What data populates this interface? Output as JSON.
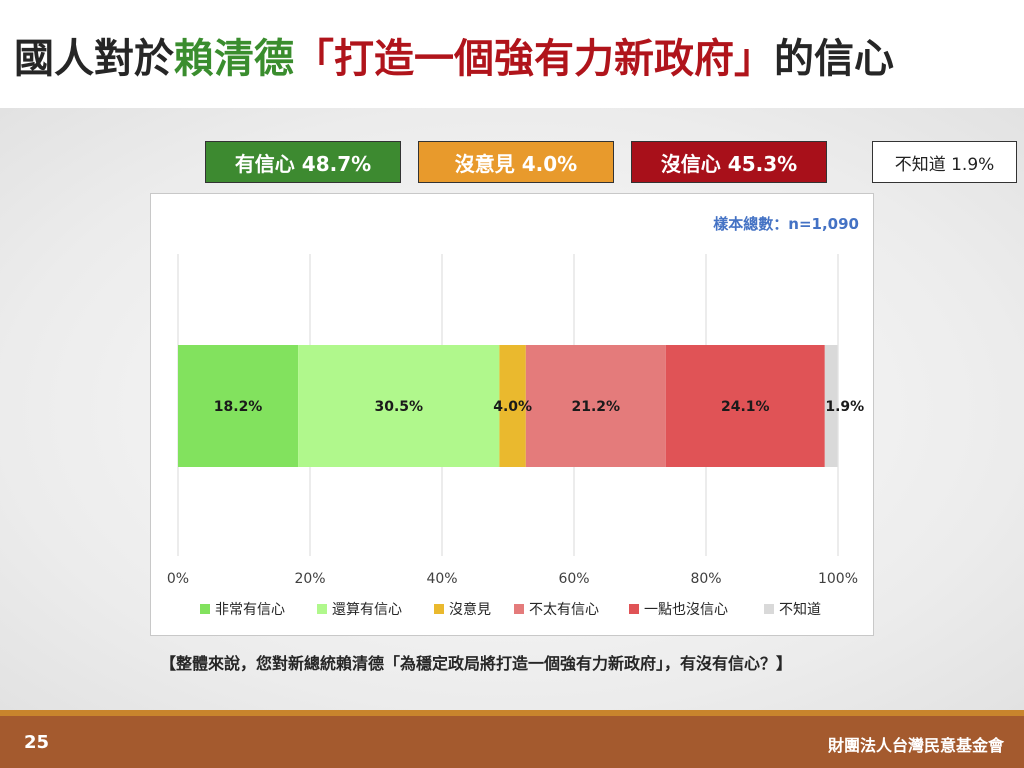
{
  "title": {
    "prefix": "國人對於",
    "name": "賴清德",
    "quote": "「打造一個強有力新政府」",
    "suffix": "的信心"
  },
  "summary": {
    "confident": "有信心 48.7%",
    "no_opinion": "沒意見 4.0%",
    "not_confident": "沒信心 45.3%",
    "dont_know": "不知道 1.9%"
  },
  "sample_size": "樣本總數：n=1,090",
  "question": "【整體來說，您對新總統賴清德「為穩定政局將打造一個強有力新政府」，有沒有信心？】",
  "footer": {
    "page_number": "25",
    "organization": "財團法人台灣民意基金會"
  },
  "colors": {
    "very_confident": "#82e25e",
    "somewhat_confident": "#b0f88c",
    "no_opinion": "#eab92e",
    "not_very_confident": "#e47b7b",
    "not_at_all_confident": "#e05356",
    "dont_know": "#d9d9d9"
  },
  "chart_data": {
    "type": "bar",
    "orientation": "horizontal",
    "stacked": true,
    "x_ticks": [
      "0%",
      "20%",
      "40%",
      "60%",
      "80%",
      "100%"
    ],
    "xlim": [
      0,
      100
    ],
    "grid": true,
    "legend_position": "bottom",
    "series": [
      {
        "name": "非常有信心",
        "value": 18.2,
        "label": "18.2%",
        "color": "#82e25e"
      },
      {
        "name": "還算有信心",
        "value": 30.5,
        "label": "30.5%",
        "color": "#b0f88c"
      },
      {
        "name": "沒意見",
        "value": 4.0,
        "label": "4.0%",
        "color": "#eab92e"
      },
      {
        "name": "不太有信心",
        "value": 21.2,
        "label": "21.2%",
        "color": "#e47b7b"
      },
      {
        "name": "一點也沒信心",
        "value": 24.1,
        "label": "24.1%",
        "color": "#e05356"
      },
      {
        "name": "不知道",
        "value": 1.9,
        "label": "1.9%",
        "color": "#d9d9d9"
      }
    ]
  }
}
